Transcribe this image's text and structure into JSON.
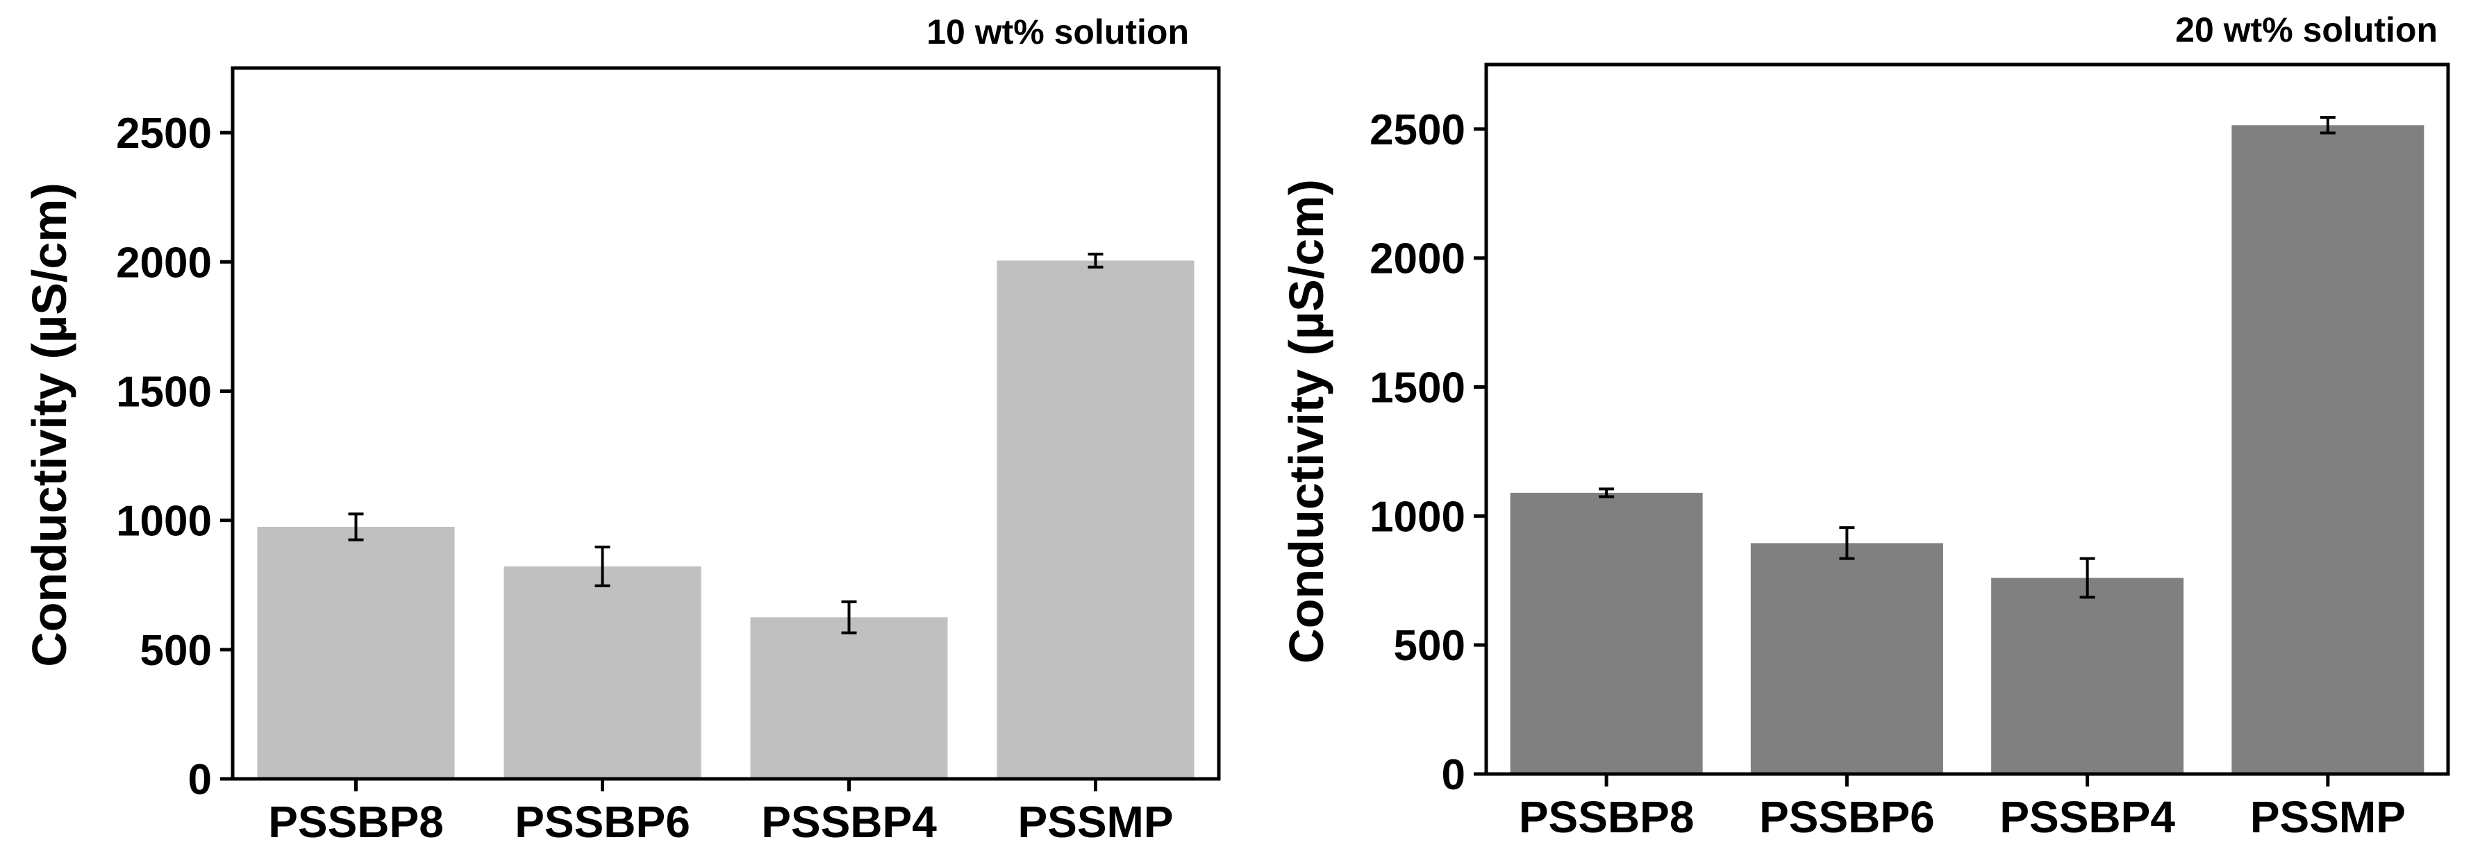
{
  "chart_data": [
    {
      "type": "bar",
      "title": "10 wt% solution",
      "xlabel": "",
      "ylabel": "Conductivity (µS/cm)",
      "categories": [
        "PSSBP8",
        "PSSBP6",
        "PSSBP4",
        "PSSMP"
      ],
      "values": [
        975,
        822,
        625,
        2005
      ],
      "errors": [
        50,
        75,
        60,
        25
      ],
      "ylim": [
        0,
        2750
      ],
      "yticks": [
        0,
        500,
        1000,
        1500,
        2000,
        2500
      ],
      "bar_color": "#c0c0c0",
      "grid": false
    },
    {
      "type": "bar",
      "title": "20 wt% solution",
      "xlabel": "",
      "ylabel": "Conductivity (µS/cm)",
      "categories": [
        "PSSBP8",
        "PSSBP6",
        "PSSBP4",
        "PSSMP"
      ],
      "values": [
        1090,
        895,
        760,
        2515
      ],
      "errors": [
        15,
        60,
        75,
        30
      ],
      "ylim": [
        0,
        2750
      ],
      "yticks": [
        0,
        500,
        1000,
        1500,
        2000,
        2500
      ],
      "bar_color": "#808080",
      "grid": false
    }
  ]
}
